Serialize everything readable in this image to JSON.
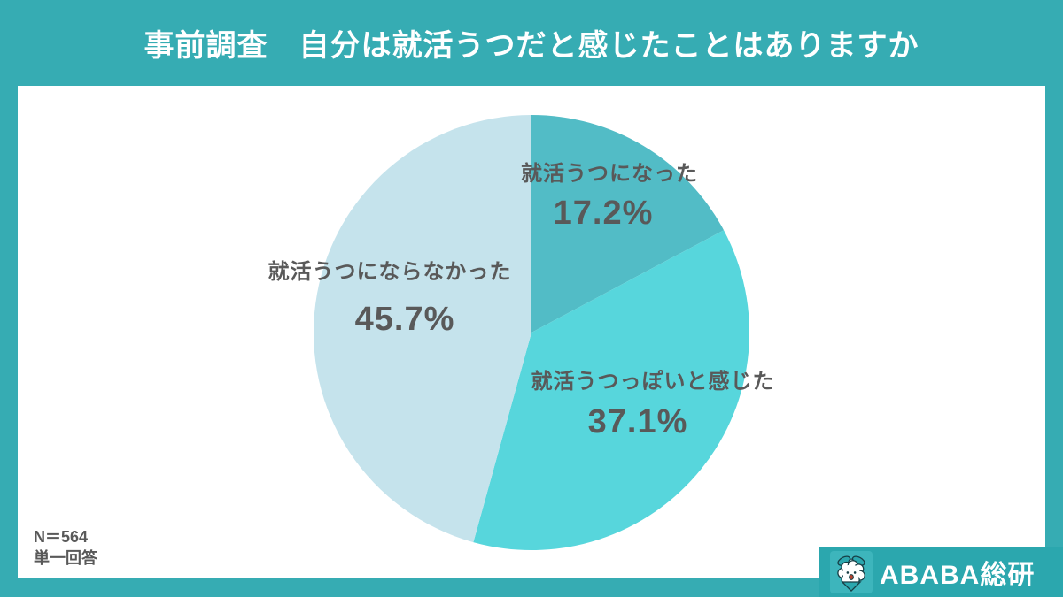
{
  "header": {
    "title": "事前調査　自分は就活うつだと感じたことはありますか"
  },
  "chart_data": {
    "type": "pie",
    "title": "事前調査　自分は就活うつだと感じたことはありますか",
    "slices": [
      {
        "label": "就活うつになった",
        "value": 17.2,
        "pct": "17.2%",
        "color": "#52bcc6"
      },
      {
        "label": "就活うつっぽいと感じた",
        "value": 37.1,
        "pct": "37.1%",
        "color": "#57d6dc"
      },
      {
        "label": "就活うつにならなかった",
        "value": 45.7,
        "pct": "45.7%",
        "color": "#c5e3ec"
      }
    ],
    "start_angle_deg": 0,
    "direction": "clockwise",
    "legend": "none",
    "label_color": "#595959"
  },
  "footnote": {
    "n": "N＝564",
    "method": "単一回答"
  },
  "branding": {
    "name": "ABABA総研",
    "icon": "alpaca-mascot-icon",
    "badge_color": "#2ba7ae"
  },
  "colors": {
    "background": "#36acb3",
    "card": "#ffffff",
    "title_text": "#ffffff"
  }
}
